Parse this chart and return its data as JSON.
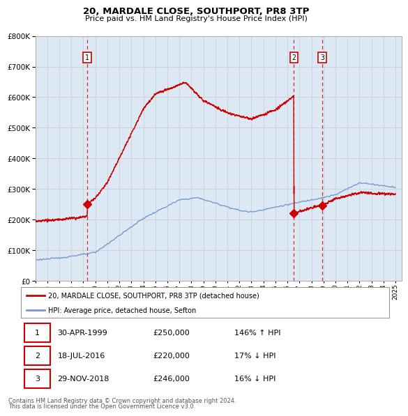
{
  "title": "20, MARDALE CLOSE, SOUTHPORT, PR8 3TP",
  "subtitle": "Price paid vs. HM Land Registry's House Price Index (HPI)",
  "legend_line1": "20, MARDALE CLOSE, SOUTHPORT, PR8 3TP (detached house)",
  "legend_line2": "HPI: Average price, detached house, Sefton",
  "footer1": "Contains HM Land Registry data © Crown copyright and database right 2024.",
  "footer2": "This data is licensed under the Open Government Licence v3.0.",
  "sales": [
    {
      "label": "1",
      "date": "30-APR-1999",
      "price": 250000,
      "year": 1999.33,
      "hpi_pct": "146%",
      "hpi_dir": "↑"
    },
    {
      "label": "2",
      "date": "18-JUL-2016",
      "price": 220000,
      "year": 2016.54,
      "hpi_pct": "17%",
      "hpi_dir": "↓"
    },
    {
      "label": "3",
      "date": "29-NOV-2018",
      "price": 246000,
      "year": 2018.91,
      "hpi_pct": "16%",
      "hpi_dir": "↓"
    }
  ],
  "ylim": [
    0,
    800000
  ],
  "xlim": [
    1995.0,
    2025.5
  ],
  "yticks": [
    0,
    100000,
    200000,
    300000,
    400000,
    500000,
    600000,
    700000,
    800000
  ],
  "xticks": [
    1995,
    1996,
    1997,
    1998,
    1999,
    2000,
    2001,
    2002,
    2003,
    2004,
    2005,
    2006,
    2007,
    2008,
    2009,
    2010,
    2011,
    2012,
    2013,
    2014,
    2015,
    2016,
    2017,
    2018,
    2019,
    2020,
    2021,
    2022,
    2023,
    2024,
    2025
  ],
  "hpi_color": "#7799cc",
  "price_color": "#cc0000",
  "grid_color": "#cccccc",
  "background_color": "#ffffff",
  "plot_bg_color": "#dce9f5",
  "sale_marker_color": "#cc0000",
  "dashed_line_color": "#cc0000"
}
